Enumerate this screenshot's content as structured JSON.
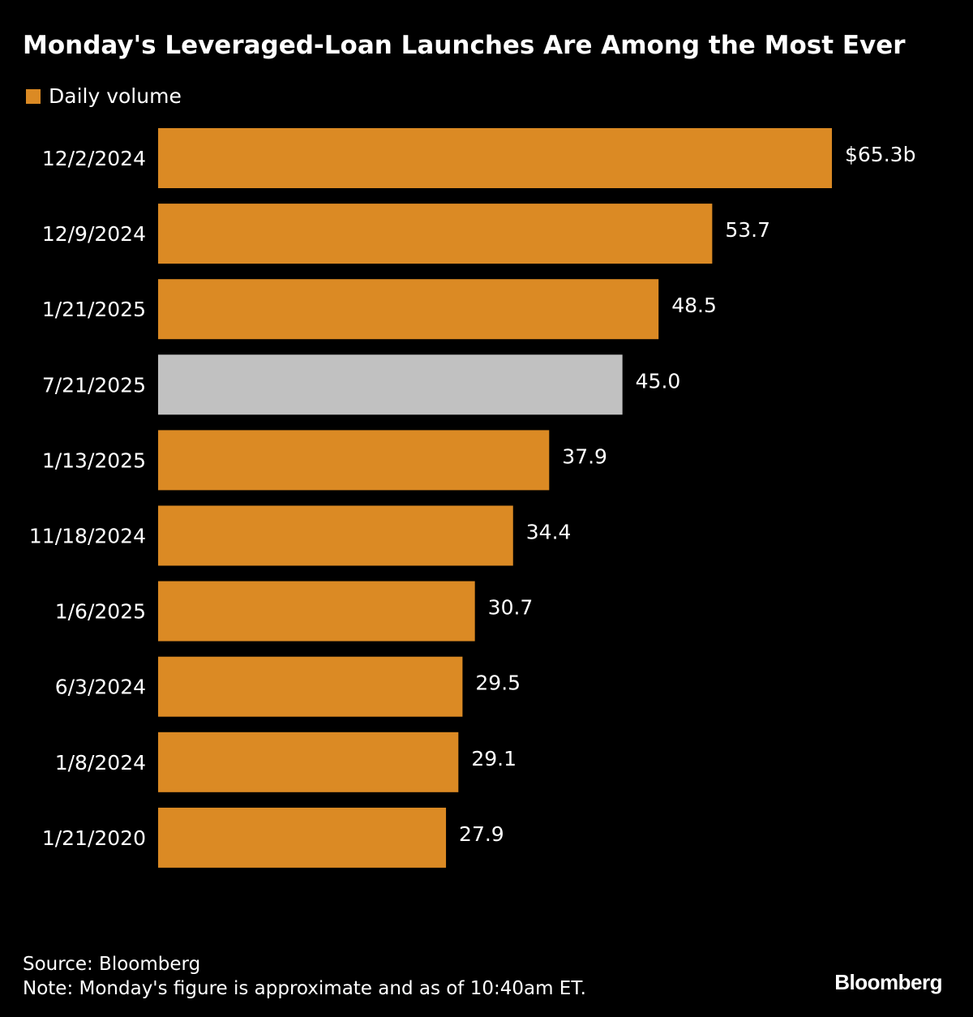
{
  "colors": {
    "background": "#000000",
    "bar_default": "#db8a24",
    "bar_highlight": "#c1c1c1",
    "text": "#ffffff"
  },
  "footer": {
    "source": "Source: Bloomberg",
    "note": "Note: Monday's figure is approximate and as of 10:40am ET.",
    "brand": "Bloomberg"
  },
  "chart_data": {
    "type": "bar",
    "orientation": "horizontal",
    "title": "Monday's Leveraged-Loan Launches Are Among the Most Ever",
    "legend": [
      "Daily volume"
    ],
    "legend_position": "top-left",
    "series": [
      {
        "name": "Daily volume",
        "values": [
          65.3,
          53.7,
          48.5,
          45.0,
          37.9,
          34.4,
          30.7,
          29.5,
          29.1,
          27.9
        ]
      }
    ],
    "categories": [
      "12/2/2024",
      "12/9/2024",
      "1/21/2025",
      "7/21/2025",
      "1/13/2025",
      "11/18/2024",
      "1/6/2025",
      "6/3/2024",
      "1/8/2024",
      "1/21/2020"
    ],
    "value_labels": [
      "$65.3b",
      "53.7",
      "48.5",
      "45.0",
      "37.9",
      "34.4",
      "30.7",
      "29.5",
      "29.1",
      "27.9"
    ],
    "highlighted_category": "7/21/2025",
    "xlim": [
      0,
      65.3
    ],
    "grid": false
  }
}
